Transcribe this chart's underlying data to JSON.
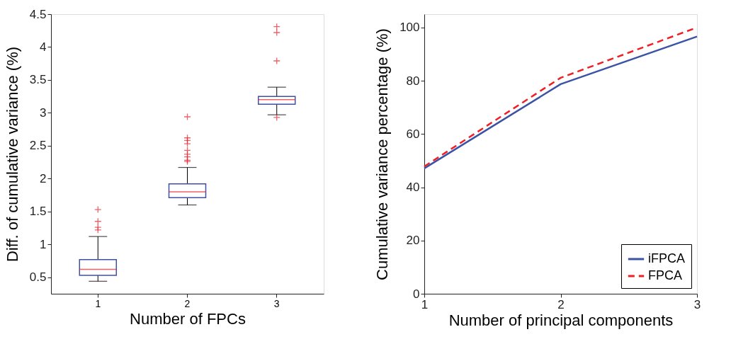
{
  "chart_data": [
    {
      "type": "box",
      "xlabel": "Number of FPCs",
      "ylabel": "Diff. of cumulative variance (%)",
      "categories": [
        "1",
        "2",
        "3"
      ],
      "ylim": [
        0.25,
        4.5
      ],
      "yticks": [
        0.5,
        1,
        1.5,
        2,
        2.5,
        3,
        3.5,
        4,
        4.5
      ],
      "grid": false,
      "series": [
        {
          "color": "#3f51a3",
          "boxes": [
            {
              "low": 0.44,
              "q1": 0.53,
              "median": 0.62,
              "q3": 0.77,
              "high": 1.12,
              "outliers": [
                1.53,
                1.35,
                1.26,
                1.22
              ]
            },
            {
              "low": 1.6,
              "q1": 1.71,
              "median": 1.8,
              "q3": 1.92,
              "high": 2.17,
              "outliers": [
                2.94,
                2.62,
                2.58,
                2.53,
                2.43,
                2.37,
                2.33,
                2.28,
                2.26
              ]
            },
            {
              "low": 2.97,
              "q1": 3.13,
              "median": 3.2,
              "q3": 3.25,
              "high": 3.39,
              "outliers": [
                4.31,
                4.22,
                3.79,
                2.93
              ]
            }
          ]
        }
      ]
    },
    {
      "type": "line",
      "xlabel": "Number of principal components",
      "ylabel": "Cumulative variance percentage (%)",
      "x": [
        1,
        2,
        3
      ],
      "xlim": [
        1,
        3
      ],
      "xticks": [
        1,
        2,
        3
      ],
      "ylim": [
        0,
        105
      ],
      "yticks": [
        0,
        20,
        40,
        60,
        80,
        100
      ],
      "grid": false,
      "legend": "bottom right",
      "series": [
        {
          "name": "iFPCA",
          "color": "#3a53a4",
          "line_style": "solid",
          "values": [
            47.1,
            78.7,
            96.6
          ]
        },
        {
          "name": "FPCA",
          "color": "#ee2026",
          "line_style": "dashed",
          "values": [
            47.8,
            81.1,
            100
          ]
        }
      ]
    }
  ]
}
